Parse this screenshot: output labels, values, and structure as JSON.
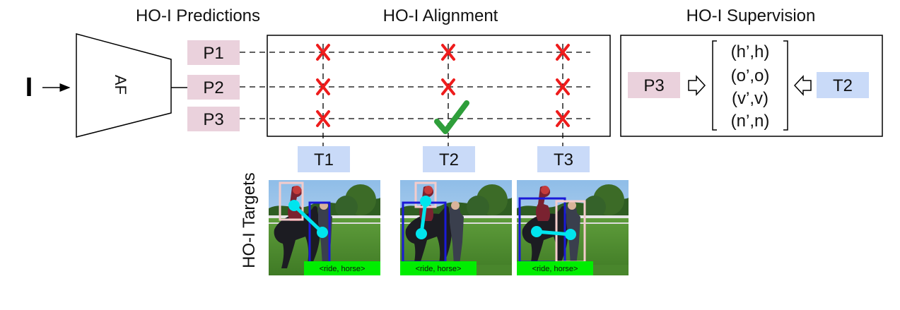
{
  "headings": {
    "predictions": "HO-I Predictions",
    "alignment": "HO-I Alignment",
    "supervision": "HO-I Supervision",
    "targets": "HO-I Targets"
  },
  "input_label": "I",
  "encoder_label": "AF",
  "predictions": [
    "P1",
    "P2",
    "P3"
  ],
  "targets": [
    "T1",
    "T2",
    "T3"
  ],
  "match": {
    "prediction": "P3",
    "target": "T2"
  },
  "supervision": {
    "prediction": "P3",
    "target": "T2",
    "pairs": [
      "(h’,h)",
      "(o’,o)",
      "(v’,v)",
      "(n’,n)"
    ]
  },
  "thumbnails": [
    {
      "label": "<ride, horse>"
    },
    {
      "label": "<ride, horse>"
    },
    {
      "label": "<ride, horse>"
    }
  ],
  "colors": {
    "prediction_fill": "#ead1dc",
    "target_fill": "#c9daf8",
    "cross": "#ee1c1c",
    "check": "#2e9e3a",
    "keypoint": "#00e5ee",
    "human_box": "#f4cccc",
    "object_box": "#1a1ad8",
    "label_fill": "#00ee00"
  }
}
